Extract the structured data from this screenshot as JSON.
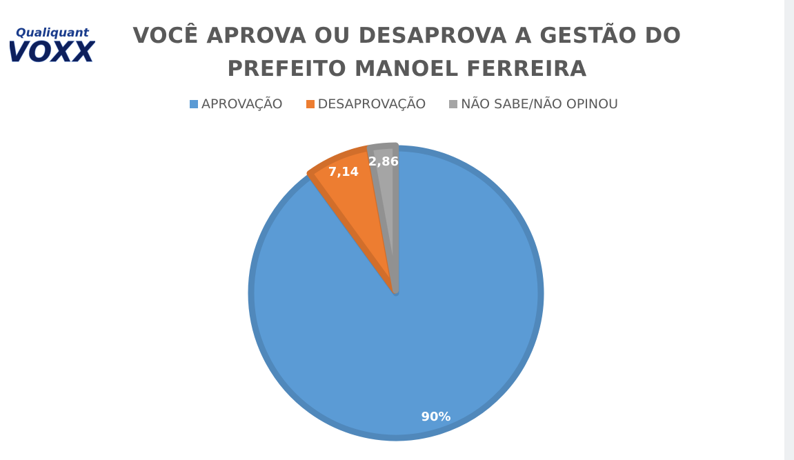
{
  "logo": {
    "line1": "Qualiquant",
    "line2": "VOXX"
  },
  "chart_data": {
    "type": "pie",
    "title": [
      "VOCÊ APROVA OU DESAPROVA A GESTÃO DO",
      "PREFEITO MANOEL FERREIRA"
    ],
    "legend_position": "top",
    "slices": [
      {
        "label": "APROVAÇÃO",
        "value": 90,
        "data_label": "90%",
        "color": "#5b9bd5"
      },
      {
        "label": "DESAPROVAÇÃO",
        "value": 7.14,
        "data_label": "7,14",
        "color": "#ed7d31"
      },
      {
        "label": "NÃO SABE/NÃO OPINOU",
        "value": 2.86,
        "data_label": "2,86",
        "color": "#a5a5a5"
      }
    ]
  }
}
